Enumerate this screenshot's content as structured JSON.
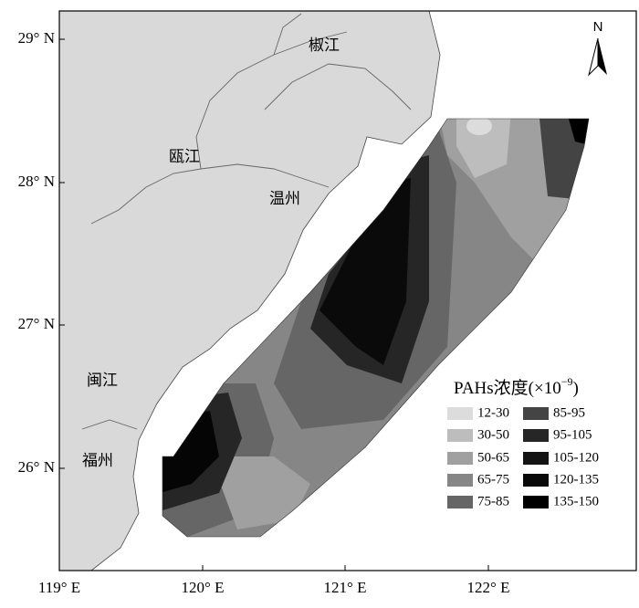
{
  "map": {
    "lon_labels": [
      "119° E",
      "120° E",
      "121° E",
      "122° E"
    ],
    "lat_labels": [
      "29° N",
      "28° N",
      "27° N",
      "26° N"
    ],
    "places": [
      "椒江",
      "瓯江",
      "温州",
      "闽江",
      "福州"
    ],
    "north": "N",
    "legend": {
      "title": "PAHs浓度(×10",
      "title_exp": "−9",
      "title_close": ")",
      "items": [
        {
          "label": "12-30",
          "color": "#dcdcdc"
        },
        {
          "label": "30-50",
          "color": "#bdbdbd"
        },
        {
          "label": "50-65",
          "color": "#a0a0a0"
        },
        {
          "label": "65-75",
          "color": "#868686"
        },
        {
          "label": "75-85",
          "color": "#666666"
        },
        {
          "label": "85-95",
          "color": "#444444"
        },
        {
          "label": "95-105",
          "color": "#262626"
        },
        {
          "label": "105-120",
          "color": "#141414"
        },
        {
          "label": "120-135",
          "color": "#090909"
        },
        {
          "label": "135-150",
          "color": "#000000"
        }
      ]
    }
  }
}
